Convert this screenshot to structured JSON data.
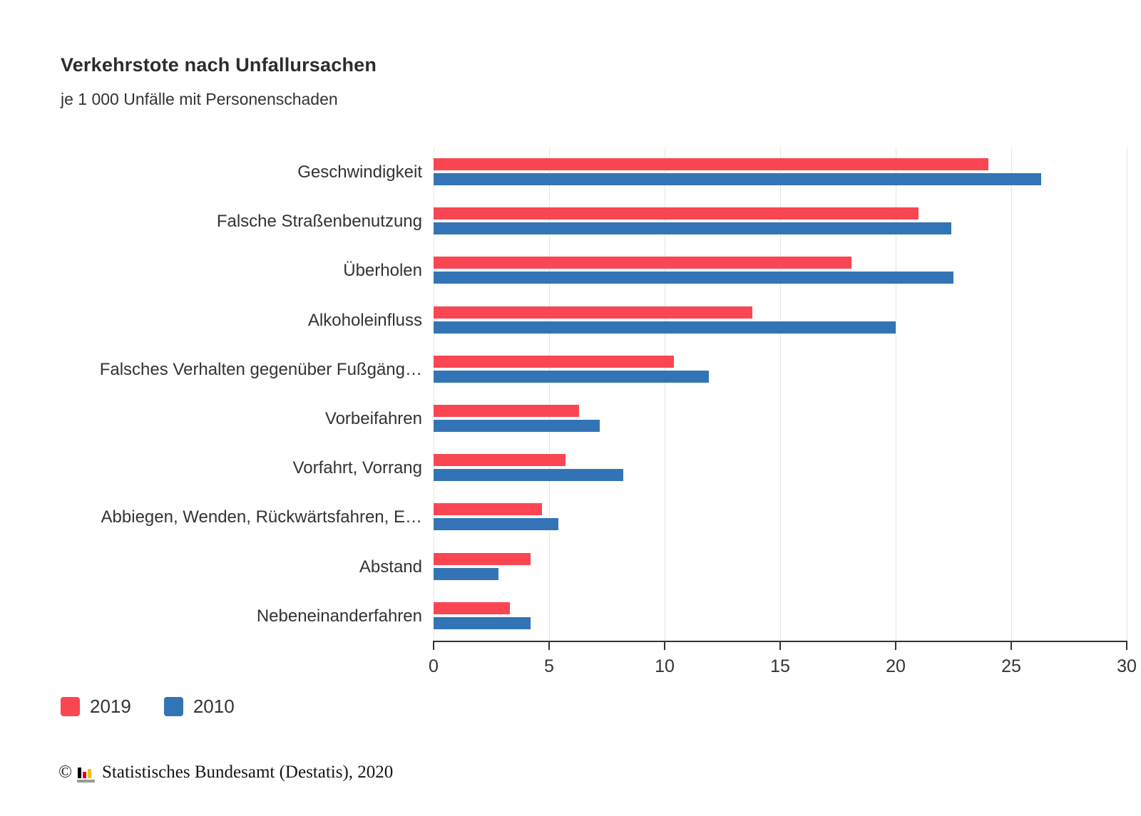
{
  "chart_data": {
    "type": "bar",
    "orientation": "horizontal",
    "title": "Verkehrstote nach Unfallursachen",
    "subtitle": "je 1 000 Unfälle mit Personenschaden",
    "categories": [
      "Geschwindigkeit",
      "Falsche Straßenbenutzung",
      "Überholen",
      "Alkoholeinfluss",
      "Falsches Verhalten gegenüber Fußgäng…",
      "Vorbeifahren",
      "Vorfahrt, Vorrang",
      "Abbiegen, Wenden, Rückwärtsfahren, E…",
      "Abstand",
      "Nebeneinanderfahren"
    ],
    "series": [
      {
        "name": "2019",
        "color": "#fa4653",
        "values": [
          24.0,
          21.0,
          18.1,
          13.8,
          10.4,
          6.3,
          5.7,
          4.7,
          4.2,
          3.3
        ]
      },
      {
        "name": "2010",
        "color": "#3274b5",
        "values": [
          26.3,
          22.4,
          22.5,
          20.0,
          11.9,
          7.2,
          8.2,
          5.4,
          2.8,
          4.2
        ]
      }
    ],
    "xlim": [
      0,
      30
    ],
    "x_ticks": [
      0,
      5,
      10,
      15,
      20,
      25,
      30
    ],
    "grid": "vertical-gridlines-on",
    "legend_position": "bottom-left",
    "axis_color": "#333333",
    "gridline_color": "#e6e6e6"
  },
  "footer": {
    "copyright_symbol": "©",
    "logo": "destatis-bar-chart-logo",
    "source_text": "Statistisches Bundesamt (Destatis), 2020"
  }
}
